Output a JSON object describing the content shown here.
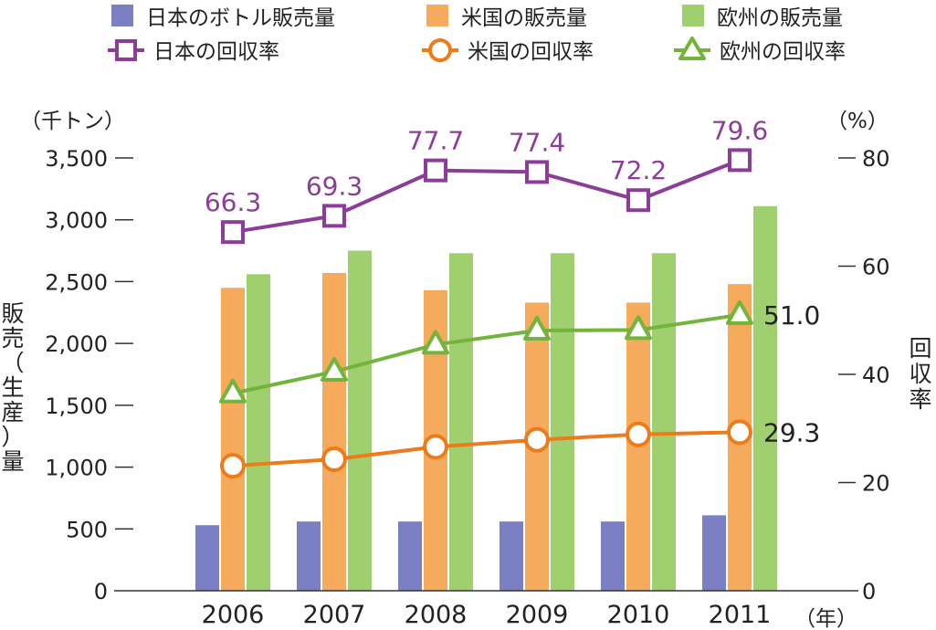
{
  "chart_data": {
    "type": "bar",
    "categories": [
      "2006",
      "2007",
      "2008",
      "2009",
      "2010",
      "2011"
    ],
    "left_axis": {
      "unit": "（千トン）",
      "label": "販売（生産）量",
      "ylim": [
        0,
        3500
      ],
      "ticks": [
        "0",
        "500",
        "1,000",
        "1,500",
        "2,000",
        "2,500",
        "3,000",
        "3,500"
      ],
      "tick_values": [
        0,
        500,
        1000,
        1500,
        2000,
        2500,
        3000,
        3500
      ]
    },
    "right_axis": {
      "unit": "（%）",
      "label": "回収率",
      "ylim": [
        0,
        80
      ],
      "ticks": [
        "0",
        "20",
        "40",
        "60",
        "80"
      ],
      "tick_values": [
        0,
        20,
        40,
        60,
        80
      ]
    },
    "x_unit": "（年）",
    "bar_series": [
      {
        "name": "日本のボトル販売量",
        "color": "#7b7fc4",
        "values": [
          530,
          560,
          560,
          560,
          560,
          610
        ]
      },
      {
        "name": "米国の販売量",
        "color": "#f5aa5c",
        "values": [
          2450,
          2570,
          2430,
          2330,
          2330,
          2480
        ]
      },
      {
        "name": "欧州の販売量",
        "color": "#9fcf6e",
        "values": [
          2560,
          2750,
          2730,
          2730,
          2730,
          3110
        ]
      }
    ],
    "line_series": [
      {
        "name": "日本の回収率",
        "color": "#8c3d98",
        "marker": "square",
        "values": [
          66.3,
          69.3,
          77.7,
          77.4,
          72.2,
          79.6
        ],
        "labels": [
          "66.3",
          "69.3",
          "77.7",
          "77.4",
          "72.2",
          "79.6"
        ]
      },
      {
        "name": "米国の回収率",
        "color": "#ee7b1a",
        "marker": "circle",
        "values": [
          23.1,
          24.3,
          26.6,
          27.9,
          28.9,
          29.3
        ],
        "end_label": "29.3"
      },
      {
        "name": "欧州の回収率",
        "color": "#72b43c",
        "marker": "triangle",
        "values": [
          36.5,
          40.5,
          45.5,
          48.1,
          48.2,
          51.0
        ],
        "end_label": "51.0"
      }
    ]
  }
}
